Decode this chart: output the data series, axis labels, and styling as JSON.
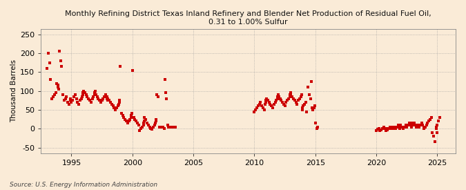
{
  "title": "Monthly Refining District Texas Inland Refinery and Blender Net Production of Residual Fuel Oil,\n0.31 to 1.00% Sulfur",
  "ylabel": "Thousand Barrels",
  "source": "Source: U.S. Energy Information Administration",
  "marker_color": "#cc0000",
  "background_color": "#faebd7",
  "plot_background": "#faebd7",
  "xlim": [
    1992.5,
    2026.5
  ],
  "ylim": [
    -65,
    265
  ],
  "yticks": [
    -50,
    0,
    50,
    100,
    150,
    200,
    250
  ],
  "xticks": [
    1995,
    2000,
    2005,
    2010,
    2015,
    2020,
    2025
  ],
  "data": [
    [
      1993.0,
      160
    ],
    [
      1993.1,
      200
    ],
    [
      1993.2,
      175
    ],
    [
      1993.3,
      130
    ],
    [
      1993.4,
      80
    ],
    [
      1993.5,
      85
    ],
    [
      1993.6,
      90
    ],
    [
      1993.7,
      95
    ],
    [
      1993.8,
      120
    ],
    [
      1993.9,
      115
    ],
    [
      1993.91,
      110
    ],
    [
      1993.95,
      105
    ],
    [
      1994.0,
      205
    ],
    [
      1994.1,
      180
    ],
    [
      1994.2,
      165
    ],
    [
      1994.3,
      90
    ],
    [
      1994.4,
      75
    ],
    [
      1994.5,
      80
    ],
    [
      1994.6,
      85
    ],
    [
      1994.7,
      70
    ],
    [
      1994.8,
      65
    ],
    [
      1994.9,
      80
    ],
    [
      1994.91,
      75
    ],
    [
      1994.95,
      70
    ],
    [
      1995.0,
      70
    ],
    [
      1995.1,
      75
    ],
    [
      1995.2,
      85
    ],
    [
      1995.3,
      90
    ],
    [
      1995.4,
      80
    ],
    [
      1995.5,
      70
    ],
    [
      1995.6,
      65
    ],
    [
      1995.7,
      75
    ],
    [
      1995.8,
      80
    ],
    [
      1995.9,
      85
    ],
    [
      1995.91,
      90
    ],
    [
      1995.95,
      95
    ],
    [
      1996.0,
      100
    ],
    [
      1996.1,
      95
    ],
    [
      1996.2,
      90
    ],
    [
      1996.3,
      85
    ],
    [
      1996.4,
      80
    ],
    [
      1996.5,
      75
    ],
    [
      1996.6,
      70
    ],
    [
      1996.7,
      80
    ],
    [
      1996.8,
      85
    ],
    [
      1996.9,
      90
    ],
    [
      1996.91,
      95
    ],
    [
      1996.95,
      100
    ],
    [
      1997.0,
      90
    ],
    [
      1997.1,
      85
    ],
    [
      1997.2,
      80
    ],
    [
      1997.3,
      75
    ],
    [
      1997.4,
      70
    ],
    [
      1997.5,
      75
    ],
    [
      1997.6,
      80
    ],
    [
      1997.7,
      85
    ],
    [
      1997.8,
      90
    ],
    [
      1997.9,
      85
    ],
    [
      1997.91,
      80
    ],
    [
      1997.95,
      75
    ],
    [
      1998.0,
      80
    ],
    [
      1998.1,
      75
    ],
    [
      1998.2,
      70
    ],
    [
      1998.3,
      65
    ],
    [
      1998.4,
      60
    ],
    [
      1998.5,
      55
    ],
    [
      1998.6,
      50
    ],
    [
      1998.7,
      55
    ],
    [
      1998.8,
      60
    ],
    [
      1998.9,
      65
    ],
    [
      1998.91,
      70
    ],
    [
      1998.95,
      75
    ],
    [
      1999.0,
      165
    ],
    [
      1999.1,
      40
    ],
    [
      1999.2,
      35
    ],
    [
      1999.3,
      30
    ],
    [
      1999.4,
      25
    ],
    [
      1999.5,
      20
    ],
    [
      1999.6,
      15
    ],
    [
      1999.7,
      20
    ],
    [
      1999.8,
      25
    ],
    [
      1999.9,
      30
    ],
    [
      1999.91,
      35
    ],
    [
      1999.95,
      40
    ],
    [
      2000.0,
      155
    ],
    [
      2000.1,
      30
    ],
    [
      2000.2,
      25
    ],
    [
      2000.3,
      20
    ],
    [
      2000.4,
      15
    ],
    [
      2000.5,
      10
    ],
    [
      2000.6,
      -5
    ],
    [
      2000.7,
      0
    ],
    [
      2000.8,
      5
    ],
    [
      2000.9,
      10
    ],
    [
      2000.91,
      15
    ],
    [
      2000.95,
      20
    ],
    [
      2001.0,
      30
    ],
    [
      2001.1,
      25
    ],
    [
      2001.2,
      15
    ],
    [
      2001.3,
      10
    ],
    [
      2001.4,
      5
    ],
    [
      2001.5,
      0
    ],
    [
      2001.6,
      -2
    ],
    [
      2001.7,
      5
    ],
    [
      2001.8,
      10
    ],
    [
      2001.9,
      15
    ],
    [
      2001.91,
      20
    ],
    [
      2001.95,
      25
    ],
    [
      2002.0,
      90
    ],
    [
      2002.1,
      85
    ],
    [
      2002.2,
      5
    ],
    [
      2002.3,
      5
    ],
    [
      2002.4,
      5
    ],
    [
      2002.5,
      5
    ],
    [
      2002.6,
      0
    ],
    [
      2002.65,
      130
    ],
    [
      2002.7,
      95
    ],
    [
      2002.8,
      80
    ],
    [
      2002.9,
      10
    ],
    [
      2002.95,
      5
    ],
    [
      2003.0,
      5
    ],
    [
      2003.1,
      5
    ],
    [
      2003.2,
      5
    ],
    [
      2003.3,
      5
    ],
    [
      2003.4,
      5
    ],
    [
      2003.5,
      5
    ],
    [
      2010.0,
      45
    ],
    [
      2010.1,
      50
    ],
    [
      2010.2,
      55
    ],
    [
      2010.3,
      60
    ],
    [
      2010.4,
      65
    ],
    [
      2010.5,
      70
    ],
    [
      2010.6,
      60
    ],
    [
      2010.7,
      55
    ],
    [
      2010.8,
      50
    ],
    [
      2010.9,
      65
    ],
    [
      2010.91,
      70
    ],
    [
      2010.95,
      75
    ],
    [
      2011.0,
      80
    ],
    [
      2011.1,
      75
    ],
    [
      2011.2,
      70
    ],
    [
      2011.3,
      65
    ],
    [
      2011.4,
      60
    ],
    [
      2011.5,
      55
    ],
    [
      2011.6,
      65
    ],
    [
      2011.7,
      70
    ],
    [
      2011.8,
      75
    ],
    [
      2011.9,
      80
    ],
    [
      2011.91,
      85
    ],
    [
      2011.95,
      90
    ],
    [
      2012.0,
      85
    ],
    [
      2012.1,
      80
    ],
    [
      2012.2,
      75
    ],
    [
      2012.3,
      70
    ],
    [
      2012.4,
      65
    ],
    [
      2012.5,
      60
    ],
    [
      2012.6,
      70
    ],
    [
      2012.7,
      75
    ],
    [
      2012.8,
      80
    ],
    [
      2012.9,
      85
    ],
    [
      2012.91,
      90
    ],
    [
      2012.95,
      95
    ],
    [
      2013.0,
      90
    ],
    [
      2013.1,
      85
    ],
    [
      2013.2,
      80
    ],
    [
      2013.3,
      75
    ],
    [
      2013.4,
      70
    ],
    [
      2013.5,
      65
    ],
    [
      2013.6,
      75
    ],
    [
      2013.7,
      80
    ],
    [
      2013.8,
      85
    ],
    [
      2013.9,
      90
    ],
    [
      2013.91,
      50
    ],
    [
      2013.95,
      55
    ],
    [
      2014.0,
      60
    ],
    [
      2014.1,
      65
    ],
    [
      2014.2,
      70
    ],
    [
      2014.3,
      45
    ],
    [
      2014.4,
      110
    ],
    [
      2014.5,
      90
    ],
    [
      2014.6,
      80
    ],
    [
      2014.65,
      125
    ],
    [
      2014.7,
      55
    ],
    [
      2014.8,
      50
    ],
    [
      2014.9,
      55
    ],
    [
      2014.95,
      60
    ],
    [
      2015.0,
      15
    ],
    [
      2015.1,
      0
    ],
    [
      2015.2,
      5
    ],
    [
      2020.0,
      -5
    ],
    [
      2020.1,
      -2
    ],
    [
      2020.2,
      0
    ],
    [
      2020.3,
      -5
    ],
    [
      2020.4,
      -3
    ],
    [
      2020.5,
      0
    ],
    [
      2020.6,
      5
    ],
    [
      2020.7,
      0
    ],
    [
      2020.8,
      -5
    ],
    [
      2020.9,
      -3
    ],
    [
      2020.91,
      -2
    ],
    [
      2020.95,
      0
    ],
    [
      2021.0,
      0
    ],
    [
      2021.1,
      5
    ],
    [
      2021.2,
      0
    ],
    [
      2021.3,
      5
    ],
    [
      2021.4,
      0
    ],
    [
      2021.5,
      5
    ],
    [
      2021.6,
      0
    ],
    [
      2021.7,
      5
    ],
    [
      2021.8,
      10
    ],
    [
      2021.9,
      5
    ],
    [
      2021.91,
      0
    ],
    [
      2021.95,
      5
    ],
    [
      2022.0,
      10
    ],
    [
      2022.1,
      5
    ],
    [
      2022.2,
      0
    ],
    [
      2022.3,
      5
    ],
    [
      2022.4,
      10
    ],
    [
      2022.5,
      5
    ],
    [
      2022.6,
      10
    ],
    [
      2022.7,
      15
    ],
    [
      2022.8,
      10
    ],
    [
      2022.9,
      5
    ],
    [
      2022.91,
      10
    ],
    [
      2022.95,
      15
    ],
    [
      2023.0,
      10
    ],
    [
      2023.1,
      15
    ],
    [
      2023.2,
      10
    ],
    [
      2023.3,
      5
    ],
    [
      2023.4,
      10
    ],
    [
      2023.5,
      5
    ],
    [
      2023.6,
      10
    ],
    [
      2023.7,
      15
    ],
    [
      2023.8,
      10
    ],
    [
      2023.9,
      5
    ],
    [
      2023.91,
      0
    ],
    [
      2023.95,
      5
    ],
    [
      2024.0,
      5
    ],
    [
      2024.1,
      10
    ],
    [
      2024.2,
      15
    ],
    [
      2024.3,
      20
    ],
    [
      2024.4,
      25
    ],
    [
      2024.5,
      30
    ],
    [
      2024.6,
      -10
    ],
    [
      2024.7,
      -20
    ],
    [
      2024.8,
      -35
    ],
    [
      2024.9,
      0
    ],
    [
      2024.91,
      5
    ],
    [
      2024.95,
      -10
    ],
    [
      2025.0,
      10
    ],
    [
      2025.1,
      20
    ],
    [
      2025.2,
      30
    ]
  ]
}
